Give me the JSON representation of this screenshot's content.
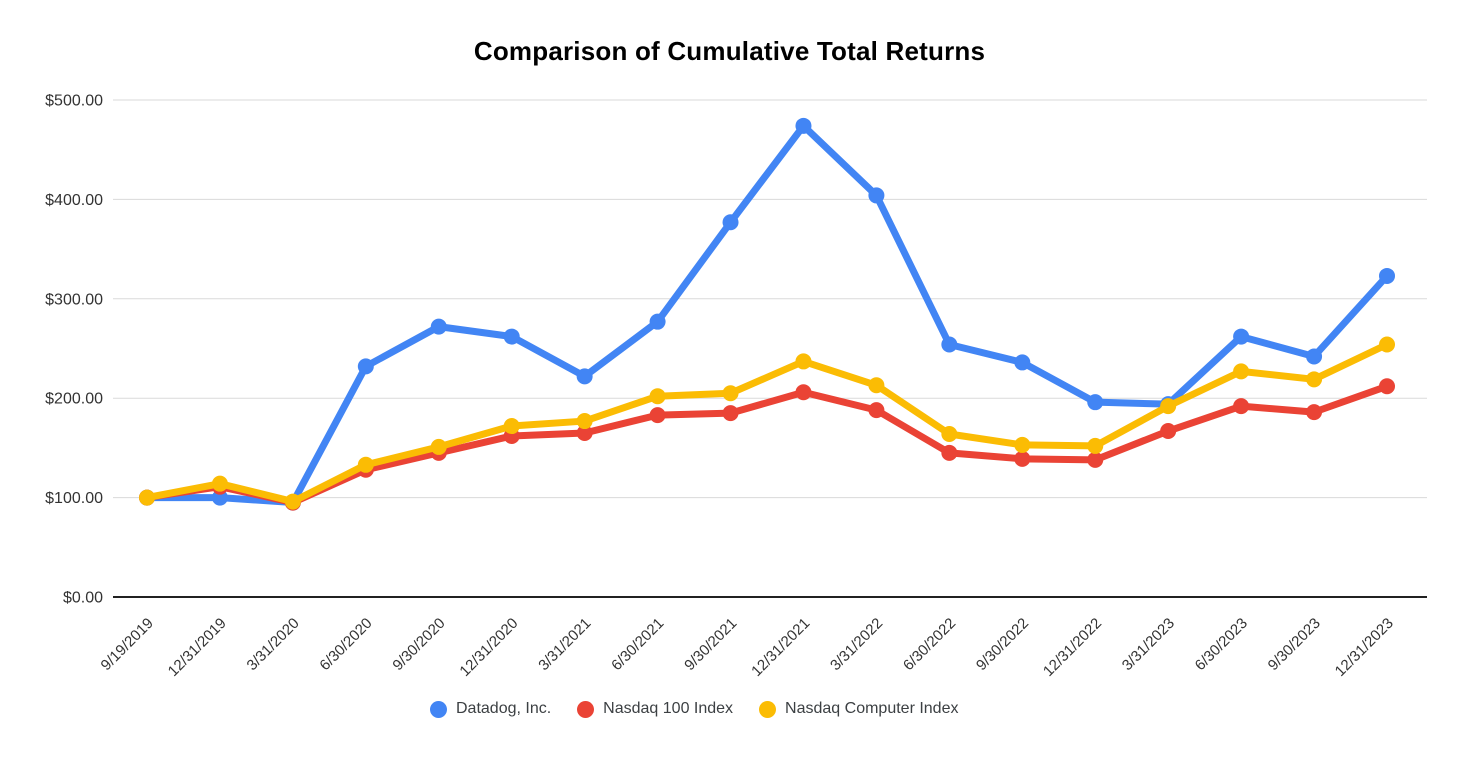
{
  "chart_data": {
    "type": "line",
    "title": "Comparison of Cumulative Total Returns",
    "xlabel": "",
    "ylabel": "",
    "ylim": [
      0,
      500
    ],
    "grid": "horizontal-only",
    "legend_position": "bottom",
    "categories": [
      "9/19/2019",
      "12/31/2019",
      "3/31/2020",
      "6/30/2020",
      "9/30/2020",
      "12/31/2020",
      "3/31/2021",
      "6/30/2021",
      "9/30/2021",
      "12/31/2021",
      "3/31/2022",
      "6/30/2022",
      "9/30/2022",
      "12/31/2022",
      "3/31/2023",
      "6/30/2023",
      "9/30/2023",
      "12/31/2023"
    ],
    "series": [
      {
        "id": "datadog",
        "name": "Datadog, Inc.",
        "color": "#4285F4",
        "values": [
          100,
          100,
          95,
          232,
          272,
          262,
          222,
          277,
          377,
          474,
          404,
          254,
          236,
          196,
          194,
          262,
          242,
          323
        ]
      },
      {
        "id": "nasdaq-100",
        "name": "Nasdaq 100 Index",
        "color": "#EA4335",
        "values": [
          100,
          111,
          95,
          128,
          145,
          162,
          165,
          183,
          185,
          206,
          188,
          145,
          139,
          138,
          167,
          192,
          186,
          212
        ]
      },
      {
        "id": "nasdaq-computer",
        "name": "Nasdaq Computer Index",
        "color": "#FBBC04",
        "values": [
          100,
          114,
          96,
          133,
          151,
          172,
          177,
          202,
          205,
          237,
          213,
          164,
          153,
          152,
          192,
          227,
          219,
          254
        ]
      }
    ],
    "y_ticks": [
      {
        "label": "$500.00",
        "value": 500
      },
      {
        "label": "$400.00",
        "value": 400
      },
      {
        "label": "$300.00",
        "value": 300
      },
      {
        "label": "$200.00",
        "value": 200
      },
      {
        "label": "$100.00",
        "value": 100
      },
      {
        "label": "$0.00",
        "value": 0
      }
    ],
    "colors": {
      "grid": "#DADADA",
      "baseline": "#212121",
      "tick_text": "#333333",
      "title_text": "#000000",
      "legend_text": "#3C4043"
    }
  }
}
